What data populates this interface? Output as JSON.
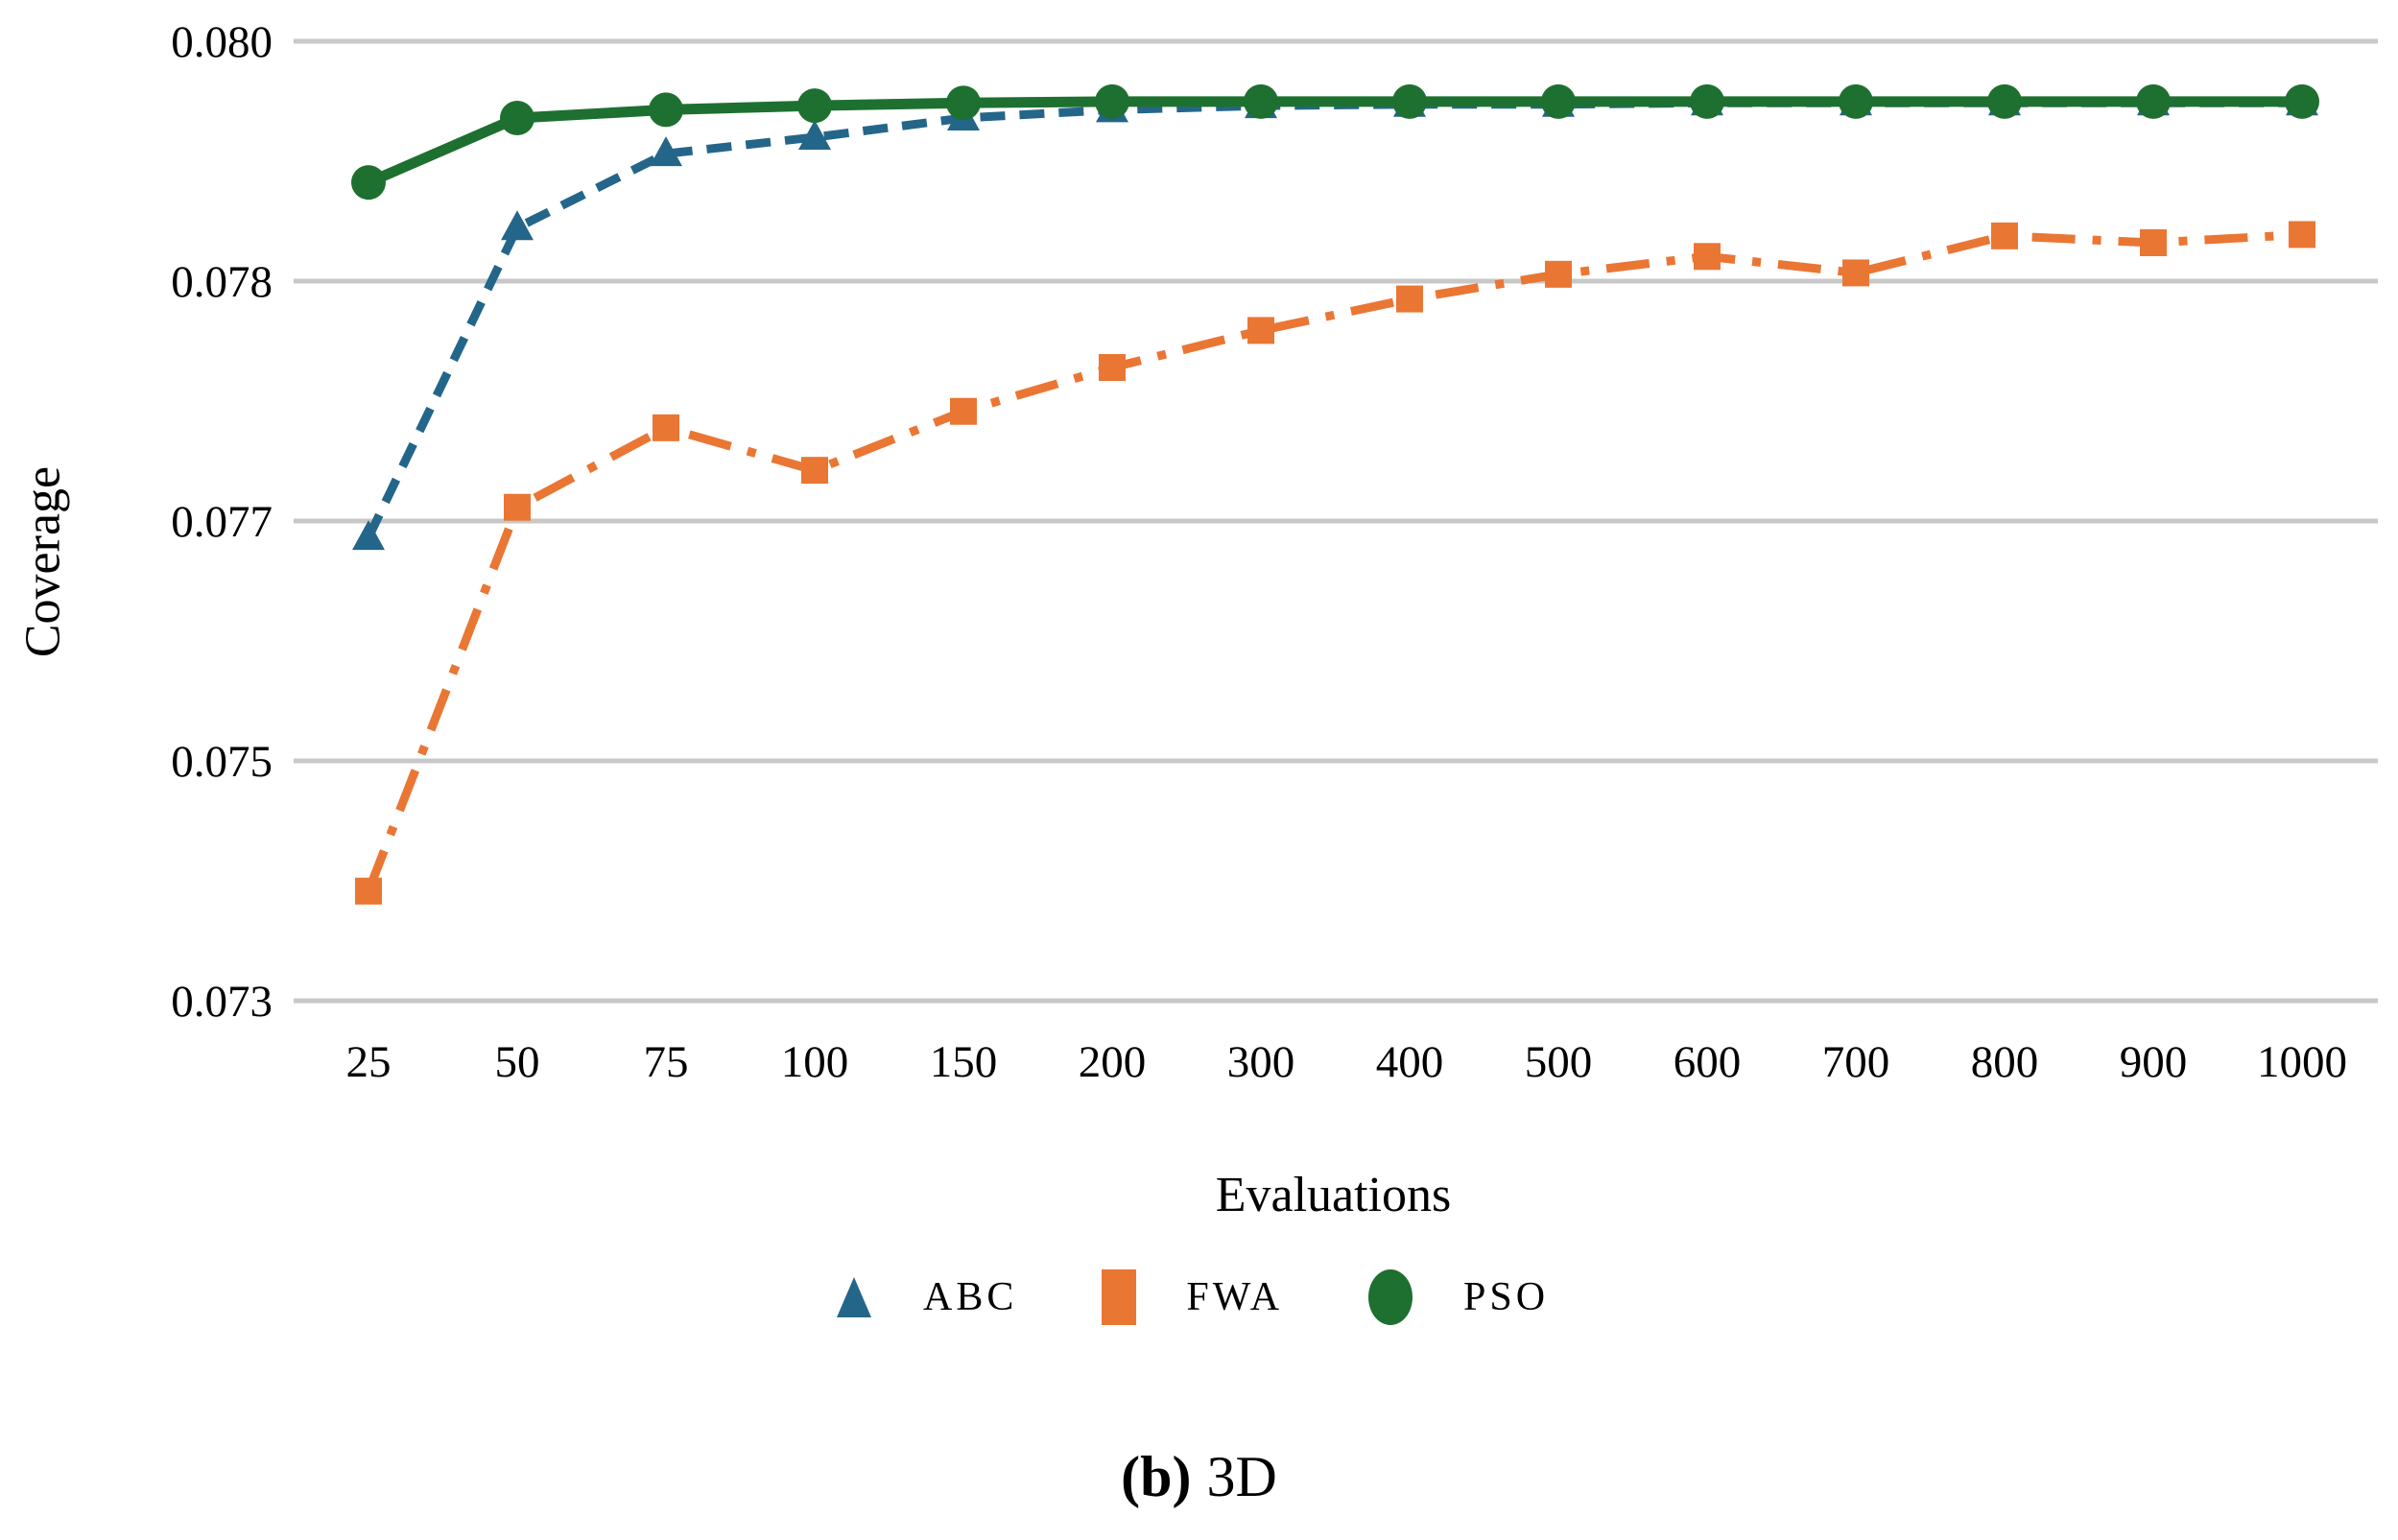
{
  "figure": {
    "caption_prefix": "(b)",
    "caption_text": "3D"
  },
  "chart_data": {
    "type": "line",
    "title": "",
    "xlabel": "Evaluations",
    "ylabel": "Coverage",
    "categories": [
      "25",
      "50",
      "75",
      "100",
      "150",
      "200",
      "300",
      "400",
      "500",
      "600",
      "700",
      "800",
      "900",
      "1000"
    ],
    "y_axis": {
      "min": 0.073,
      "max": 0.08,
      "tick_values": [
        0.08,
        0.07825,
        0.0765,
        0.07475,
        0.073
      ],
      "tick_labels": [
        "0.080",
        "0.078",
        "0.077",
        "0.075",
        "0.073"
      ]
    },
    "grid": "horizontal-only",
    "grid_color": "#c8c8c8",
    "legend_position": "bottom",
    "series": [
      {
        "name": "ABC",
        "color": "#24668a",
        "line_style": "dashed",
        "marker": "triangle",
        "values": [
          0.07638,
          0.07864,
          0.07918,
          0.0793,
          0.07944,
          0.0795,
          0.07953,
          0.07954,
          0.07954,
          0.07955,
          0.07955,
          0.07955,
          0.07955,
          0.07955
        ]
      },
      {
        "name": "FWA",
        "color": "#ea7634",
        "line_style": "dash-dot",
        "marker": "square",
        "values": [
          0.0738,
          0.0766,
          0.07718,
          0.07687,
          0.0773,
          0.07762,
          0.07789,
          0.07812,
          0.0783,
          0.07843,
          0.07831,
          0.07858,
          0.07853,
          0.07859
        ]
      },
      {
        "name": "PSO",
        "color": "#1e7030",
        "line_style": "solid",
        "marker": "circle",
        "values": [
          0.07897,
          0.07944,
          0.0795,
          0.07953,
          0.07955,
          0.07956,
          0.07956,
          0.07956,
          0.07956,
          0.07956,
          0.07956,
          0.07956,
          0.07956,
          0.07956
        ]
      }
    ]
  }
}
